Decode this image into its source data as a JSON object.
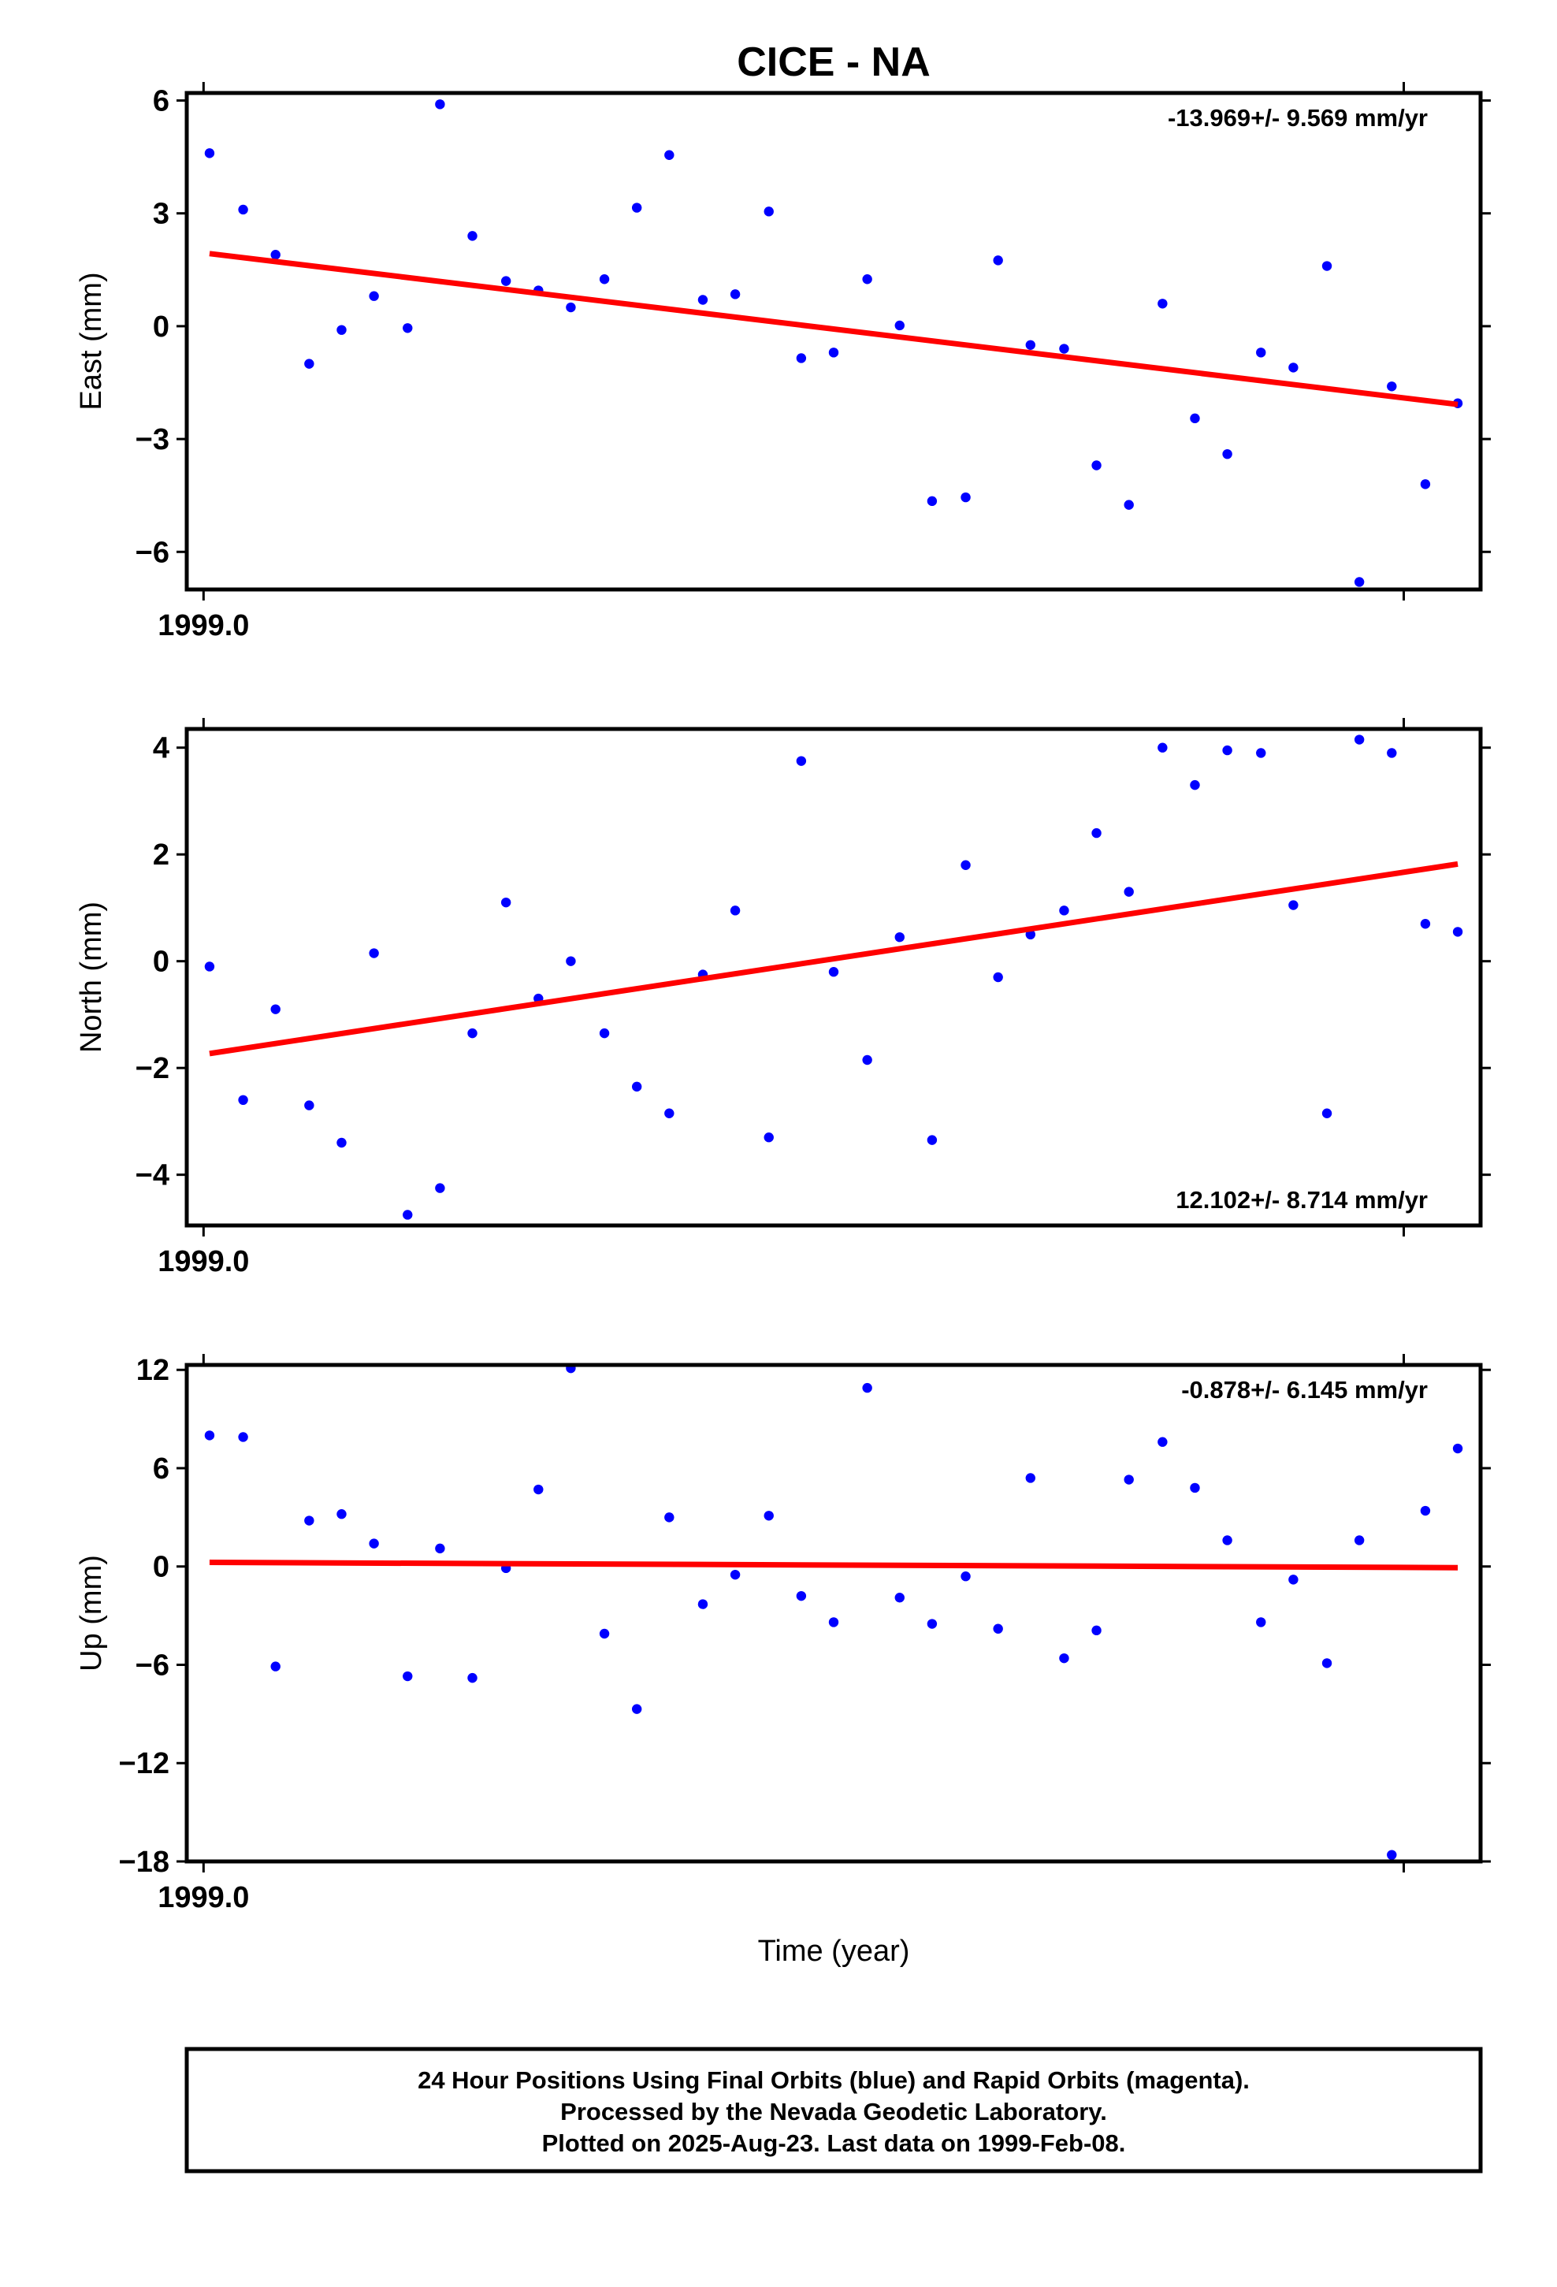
{
  "title": "CICE - NA",
  "xlabel": "Time (year)",
  "colors": {
    "data": "#0000ff",
    "trend": "#ff0000",
    "frame": "#000000"
  },
  "footer": {
    "line1": "24 Hour Positions Using Final Orbits (blue) and Rapid Orbits (magenta).",
    "line2": "Processed by the Nevada Geodetic Laboratory.",
    "line3": "Plotted on 2025-Aug-23. Last data on 1999-Feb-08."
  },
  "chart_data": [
    {
      "type": "scatter",
      "panel": "east",
      "ylabel": "East (mm)",
      "rate_label": "-13.969+/- 9.569 mm/yr",
      "rate_position": "top-right",
      "x_tick_label": "1999.0",
      "yticks": [
        6,
        3,
        0,
        -3,
        -6
      ],
      "ylim": [
        -7.0,
        6.2
      ],
      "xlim": [
        1998.9986,
        1999.1064
      ],
      "x": [
        1999.0005,
        1999.0033,
        1999.006,
        1999.0088,
        1999.0115,
        1999.0142,
        1999.017,
        1999.0197,
        1999.0224,
        1999.0252,
        1999.0279,
        1999.0306,
        1999.0334,
        1999.0361,
        1999.0388,
        1999.0416,
        1999.0443,
        1999.0471,
        1999.0498,
        1999.0525,
        1999.0553,
        1999.058,
        1999.0607,
        1999.0635,
        1999.0662,
        1999.0689,
        1999.0717,
        1999.0744,
        1999.0771,
        1999.0799,
        1999.0826,
        1999.0853,
        1999.0881,
        1999.0908,
        1999.0936,
        1999.0963,
        1999.099,
        1999.1018,
        1999.1045
      ],
      "y": [
        4.6,
        3.1,
        1.9,
        -1.0,
        -0.1,
        0.8,
        -0.05,
        5.9,
        2.4,
        1.2,
        0.95,
        0.5,
        1.25,
        3.15,
        4.55,
        0.7,
        0.85,
        3.05,
        -0.85,
        -0.7,
        1.25,
        0.02,
        -4.65,
        -4.55,
        1.75,
        -0.5,
        -0.6,
        -3.7,
        -4.75,
        0.6,
        -2.45,
        -3.4,
        -0.7,
        -1.1,
        1.6,
        -6.8,
        -1.6,
        -4.2,
        -2.05
      ],
      "trend": {
        "x": [
          1999.0005,
          1999.1045
        ],
        "y": [
          1.93,
          -2.08
        ]
      }
    },
    {
      "type": "scatter",
      "panel": "north",
      "ylabel": "North (mm)",
      "rate_label": "12.102+/- 8.714 mm/yr",
      "rate_position": "bottom-right",
      "x_tick_label": "1999.0",
      "yticks": [
        4,
        2,
        0,
        -2,
        -4
      ],
      "ylim": [
        -4.95,
        4.35
      ],
      "xlim": [
        1998.9986,
        1999.1064
      ],
      "x": [
        1999.0005,
        1999.0033,
        1999.006,
        1999.0088,
        1999.0115,
        1999.0142,
        1999.017,
        1999.0197,
        1999.0224,
        1999.0252,
        1999.0279,
        1999.0306,
        1999.0334,
        1999.0361,
        1999.0388,
        1999.0416,
        1999.0443,
        1999.0471,
        1999.0498,
        1999.0525,
        1999.0553,
        1999.058,
        1999.0607,
        1999.0635,
        1999.0662,
        1999.0689,
        1999.0717,
        1999.0744,
        1999.0771,
        1999.0799,
        1999.0826,
        1999.0853,
        1999.0881,
        1999.0908,
        1999.0936,
        1999.0963,
        1999.099,
        1999.1018,
        1999.1045
      ],
      "y": [
        -0.1,
        -2.6,
        -0.9,
        -2.7,
        -3.4,
        0.15,
        -4.75,
        -4.25,
        -1.35,
        1.1,
        -0.7,
        0.0,
        -1.35,
        -2.35,
        -2.85,
        -0.25,
        0.95,
        -3.3,
        3.75,
        -0.2,
        -1.85,
        0.45,
        -3.35,
        1.8,
        -0.3,
        0.5,
        0.95,
        2.4,
        1.3,
        4.0,
        3.3,
        3.95,
        3.9,
        1.05,
        -2.85,
        4.15,
        3.9,
        0.7,
        0.55
      ],
      "trend": {
        "x": [
          1999.0005,
          1999.1045
        ],
        "y": [
          -1.73,
          1.82
        ]
      }
    },
    {
      "type": "scatter",
      "panel": "up",
      "ylabel": "Up (mm)",
      "rate_label": "-0.878+/- 6.145 mm/yr",
      "rate_position": "top-right",
      "x_tick_label": "1999.0",
      "yticks": [
        12,
        6,
        0,
        -6,
        -12,
        -18
      ],
      "ylim": [
        -18,
        12.3
      ],
      "xlim": [
        1998.9986,
        1999.1064
      ],
      "x": [
        1999.0005,
        1999.0033,
        1999.006,
        1999.0088,
        1999.0115,
        1999.0142,
        1999.017,
        1999.0197,
        1999.0224,
        1999.0252,
        1999.0279,
        1999.0306,
        1999.0334,
        1999.0361,
        1999.0388,
        1999.0416,
        1999.0443,
        1999.0471,
        1999.0498,
        1999.0525,
        1999.0553,
        1999.058,
        1999.0607,
        1999.0635,
        1999.0662,
        1999.0689,
        1999.0717,
        1999.0744,
        1999.0771,
        1999.0799,
        1999.0826,
        1999.0853,
        1999.0881,
        1999.0908,
        1999.0936,
        1999.0963,
        1999.099,
        1999.1018,
        1999.1045
      ],
      "y": [
        8.0,
        7.9,
        -6.1,
        2.8,
        3.2,
        1.4,
        -6.7,
        1.1,
        -6.8,
        -0.1,
        4.7,
        12.1,
        -4.1,
        -8.7,
        3.0,
        -2.3,
        -0.5,
        3.1,
        -1.8,
        -3.4,
        10.9,
        -1.9,
        -3.5,
        -0.6,
        -3.8,
        5.4,
        -5.6,
        -3.9,
        5.3,
        7.6,
        4.8,
        1.6,
        -3.4,
        -0.8,
        -5.9,
        1.6,
        -17.6,
        3.4,
        7.2
      ],
      "trend": {
        "x": [
          1999.0005,
          1999.1045
        ],
        "y": [
          0.25,
          -0.07
        ]
      }
    }
  ]
}
